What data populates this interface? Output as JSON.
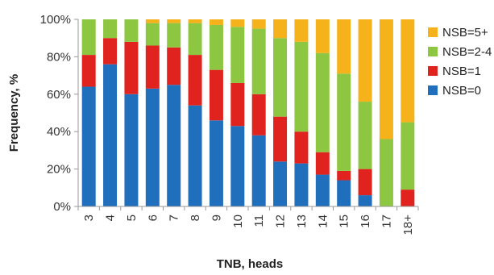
{
  "chart_data": {
    "type": "bar",
    "stacked": true,
    "normalized": true,
    "xlabel": "TNB, heads",
    "ylabel": "Frequency, %",
    "ylim": [
      0,
      100
    ],
    "yticks": [
      0,
      20,
      40,
      60,
      80,
      100
    ],
    "ytick_labels": [
      "0%",
      "20%",
      "40%",
      "60%",
      "80%",
      "100%"
    ],
    "categories": [
      "3",
      "4",
      "5",
      "6",
      "7",
      "8",
      "9",
      "10",
      "11",
      "12",
      "13",
      "14",
      "15",
      "16",
      "17",
      "18+"
    ],
    "series": [
      {
        "name": "NSB=0",
        "color": "#1f6fbd",
        "values": [
          64,
          76,
          60,
          63,
          65,
          54,
          46,
          43,
          38,
          24,
          23,
          17,
          14,
          6,
          0,
          0
        ]
      },
      {
        "name": "NSB=1",
        "color": "#e0231f",
        "values": [
          17,
          14,
          28,
          23,
          20,
          27,
          27,
          23,
          22,
          24,
          17,
          12,
          5,
          14,
          0,
          9
        ]
      },
      {
        "name": "NSB=2-4",
        "color": "#8dc641",
        "values": [
          19,
          10,
          12,
          12,
          13,
          17,
          24,
          30,
          35,
          42,
          48,
          53,
          52,
          36,
          36,
          36
        ]
      },
      {
        "name": "NSB=5+",
        "color": "#f5b21b",
        "values": [
          0,
          0,
          0,
          2,
          2,
          2,
          3,
          4,
          5,
          10,
          12,
          18,
          29,
          44,
          64,
          55
        ]
      }
    ],
    "legend_position": "right",
    "legend_order": [
      "NSB=5+",
      "NSB=2-4",
      "NSB=1",
      "NSB=0"
    ],
    "grid": false
  }
}
